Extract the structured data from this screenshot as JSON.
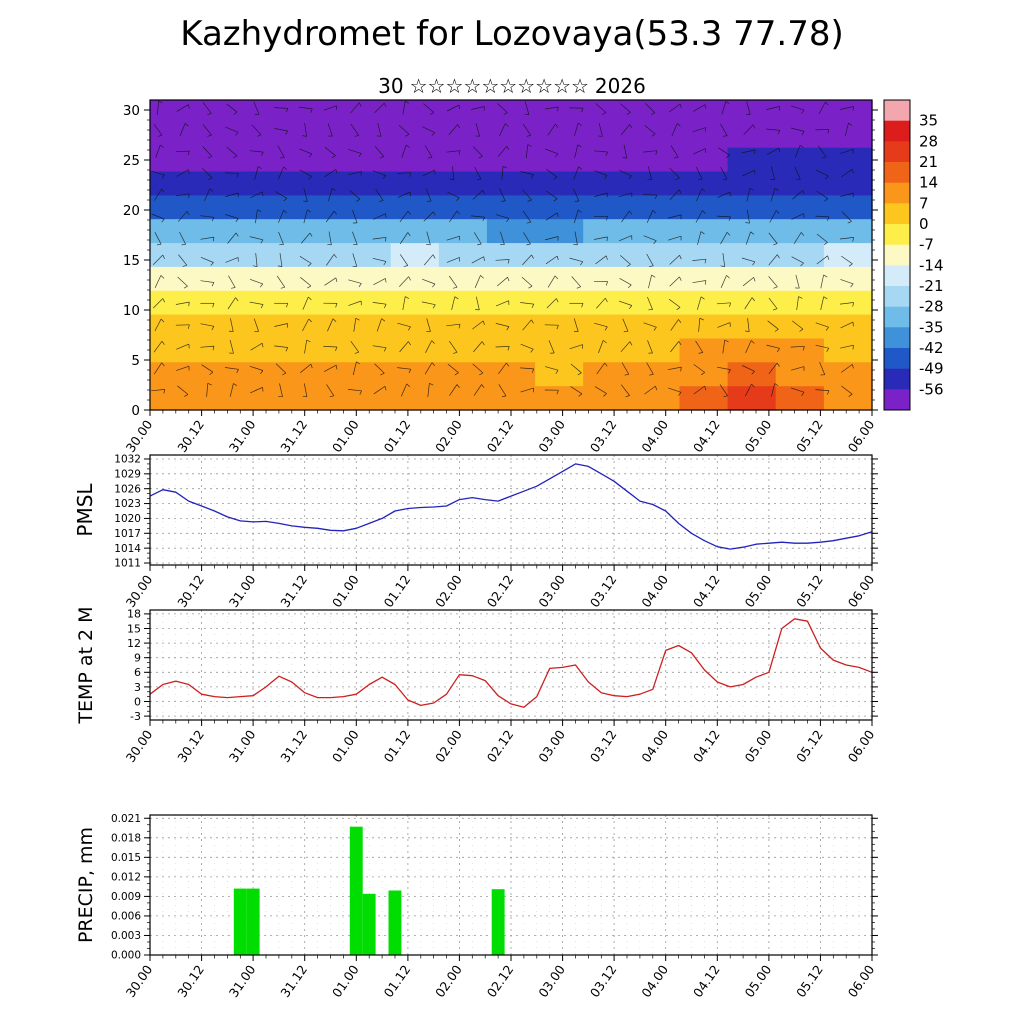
{
  "header": {
    "title": "Kazhydromet for Lozovaya(53.3 77.78)",
    "date": {
      "day": "30",
      "stars": "☆☆☆☆☆☆☆☆☆☆",
      "year": "2026"
    }
  },
  "time_axis": {
    "labels": [
      "30.00",
      "30.12",
      "31.00",
      "31.12",
      "01.00",
      "01.12",
      "02.00",
      "02.12",
      "03.00",
      "03.12",
      "04.00",
      "04.12",
      "05.00",
      "05.12",
      "06.00"
    ],
    "step_hours": 3,
    "points": 57
  },
  "chart_data": [
    {
      "id": "cross-section",
      "type": "heatmap",
      "title": "",
      "xlabel": "",
      "ylabel": "",
      "ylim": [
        0,
        31
      ],
      "y_ticks": [
        0,
        5,
        10,
        15,
        20,
        25,
        30
      ],
      "y_tick_labels": [
        "0",
        "5",
        "10",
        "15",
        "20",
        "25",
        "30"
      ],
      "x_tick_labels": "shared:time_axis",
      "overlay": "wind-barbs",
      "grid_levels_top_to_bottom": [
        30,
        27.5,
        25,
        22.5,
        20,
        17.5,
        15,
        12.5,
        10,
        7.5,
        5,
        2.5,
        0
      ],
      "values": [
        [
          -58,
          -58,
          -59,
          -58,
          -58,
          -57,
          -58,
          -59,
          -58,
          -58,
          -57,
          -58,
          -58,
          -57,
          -57
        ],
        [
          -60,
          -60,
          -61,
          -60,
          -60,
          -59,
          -60,
          -61,
          -60,
          -60,
          -59,
          -60,
          -60,
          -59,
          -59
        ],
        [
          -58,
          -59,
          -59,
          -58,
          -58,
          -57,
          -58,
          -59,
          -59,
          -58,
          -57,
          -58,
          -52,
          -50,
          -51
        ],
        [
          -53,
          -54,
          -54,
          -53,
          -53,
          -52,
          -53,
          -55,
          -55,
          -54,
          -53,
          -54,
          -53,
          -52,
          -52
        ],
        [
          -44,
          -45,
          -46,
          -45,
          -44,
          -43,
          -45,
          -47,
          -47,
          -45,
          -44,
          -45,
          -45,
          -44,
          -43
        ],
        [
          -33,
          -34,
          -35,
          -34,
          -33,
          -32,
          -34,
          -36,
          -36,
          -34,
          -33,
          -34,
          -34,
          -33,
          -32
        ],
        [
          -22,
          -23,
          -24,
          -23,
          -22,
          -21,
          -23,
          -25,
          -24,
          -23,
          -22,
          -23,
          -23,
          -22,
          -21
        ],
        [
          -10,
          -11,
          -12,
          -11,
          -10,
          -9,
          -11,
          -13,
          -12,
          -11,
          -10,
          -11,
          -11,
          -10,
          -9
        ],
        [
          -3,
          -4,
          -4,
          -3,
          -2,
          -2,
          -3,
          -5,
          -4,
          -3,
          -2,
          -3,
          -2,
          -2,
          -1
        ],
        [
          2,
          1,
          1,
          2,
          3,
          3,
          2,
          1,
          1,
          2,
          3,
          3,
          4,
          4,
          3
        ],
        [
          5,
          4,
          4,
          5,
          6,
          6,
          5,
          4,
          4,
          5,
          6,
          8,
          9,
          8,
          6
        ],
        [
          8,
          7,
          7,
          8,
          9,
          9,
          8,
          7,
          6,
          8,
          9,
          13,
          15,
          13,
          9
        ],
        [
          9,
          8,
          8,
          9,
          10,
          10,
          9,
          8,
          7,
          9,
          10,
          15,
          22,
          16,
          10
        ]
      ],
      "colorbar": {
        "tick_labels": [
          "35",
          "28",
          "21",
          "14",
          "7",
          "0",
          "-7",
          "-14",
          "-21",
          "-28",
          "-35",
          "-42",
          "-49",
          "-56"
        ],
        "thresholds": [
          35,
          28,
          21,
          14,
          7,
          0,
          -7,
          -14,
          -21,
          -28,
          -35,
          -42,
          -49,
          -56
        ],
        "colors_top_to_bottom": [
          "#f2a6ae",
          "#dd1c1c",
          "#e63b1b",
          "#f06418",
          "#fa9619",
          "#fcc61e",
          "#fdee4a",
          "#fdf9c4",
          "#d4ecfa",
          "#a6d8f4",
          "#70bce8",
          "#3f92da",
          "#2058c8",
          "#2a2ab8",
          "#7a22c8"
        ]
      }
    },
    {
      "id": "pmsl",
      "type": "line",
      "label": "PMSL",
      "line_color": "#2323bb",
      "ylim": [
        1010.6,
        1032.8
      ],
      "y_ticks": [
        1011,
        1014,
        1017,
        1020,
        1023,
        1026,
        1029,
        1032
      ],
      "y_tick_labels": [
        "1011",
        "1014",
        "1017",
        "1020",
        "1023",
        "1026",
        "1029",
        "1032"
      ],
      "x_tick_labels": "shared:time_axis",
      "values": [
        1024.5,
        1025.8,
        1025.3,
        1023.5,
        1022.5,
        1021.5,
        1020.3,
        1019.5,
        1019.3,
        1019.4,
        1019.0,
        1018.5,
        1018.2,
        1018.0,
        1017.6,
        1017.5,
        1018.0,
        1019.0,
        1020.0,
        1021.5,
        1022.0,
        1022.2,
        1022.3,
        1022.5,
        1023.8,
        1024.2,
        1023.8,
        1023.5,
        1024.5,
        1025.5,
        1026.5,
        1028.0,
        1029.5,
        1031.0,
        1030.5,
        1029.0,
        1027.5,
        1025.5,
        1023.5,
        1022.8,
        1021.5,
        1019.0,
        1017.0,
        1015.5,
        1014.3,
        1013.8,
        1014.2,
        1014.8,
        1015.0,
        1015.2,
        1015.0,
        1015.0,
        1015.2,
        1015.5,
        1016.0,
        1016.5,
        1017.3
      ]
    },
    {
      "id": "temp2m",
      "type": "line",
      "label": "TEMP at 2 M",
      "line_color": "#cc2020",
      "ylim": [
        -3.8,
        18.8
      ],
      "y_ticks": [
        -3,
        0,
        3,
        6,
        9,
        12,
        15,
        18
      ],
      "y_tick_labels": [
        "-3",
        "0",
        "3",
        "6",
        "9",
        "12",
        "15",
        "18"
      ],
      "x_tick_labels": "shared:time_axis",
      "values": [
        1.5,
        3.5,
        4.2,
        3.5,
        1.5,
        1.0,
        0.8,
        1.0,
        1.2,
        3.0,
        5.2,
        4.0,
        1.8,
        0.8,
        0.8,
        1.0,
        1.5,
        3.5,
        5.0,
        3.5,
        0.3,
        -0.8,
        -0.3,
        1.5,
        5.5,
        5.3,
        4.3,
        1.2,
        -0.5,
        -1.2,
        1.0,
        6.8,
        7.0,
        7.5,
        4.0,
        1.8,
        1.2,
        1.0,
        1.5,
        2.5,
        10.5,
        11.5,
        10.0,
        6.5,
        4.0,
        3.0,
        3.5,
        5.0,
        6.0,
        15.0,
        17.0,
        16.5,
        11.0,
        8.5,
        7.5,
        7.0,
        6.0
      ]
    },
    {
      "id": "precip",
      "type": "bar",
      "label": "PRECIP, mm",
      "bar_color": "#00dd00",
      "ylim": [
        0,
        0.0215
      ],
      "y_ticks": [
        0,
        0.003,
        0.006,
        0.009,
        0.012,
        0.015,
        0.018,
        0.021
      ],
      "y_tick_labels": [
        "0.000",
        "0.003",
        "0.006",
        "0.009",
        "0.012",
        "0.015",
        "0.018",
        "0.021"
      ],
      "x_tick_labels": "shared:time_axis",
      "values": [
        0,
        0,
        0,
        0,
        0,
        0,
        0,
        0.0102,
        0.0102,
        0,
        0,
        0,
        0,
        0,
        0,
        0,
        0.0197,
        0.0094,
        0,
        0.0099,
        0,
        0,
        0,
        0,
        0,
        0,
        0,
        0.0101,
        0,
        0,
        0,
        0,
        0,
        0,
        0,
        0,
        0,
        0,
        0,
        0,
        0,
        0,
        0,
        0,
        0,
        0,
        0,
        0,
        0,
        0,
        0,
        0,
        0,
        0,
        0,
        0,
        0
      ]
    }
  ]
}
